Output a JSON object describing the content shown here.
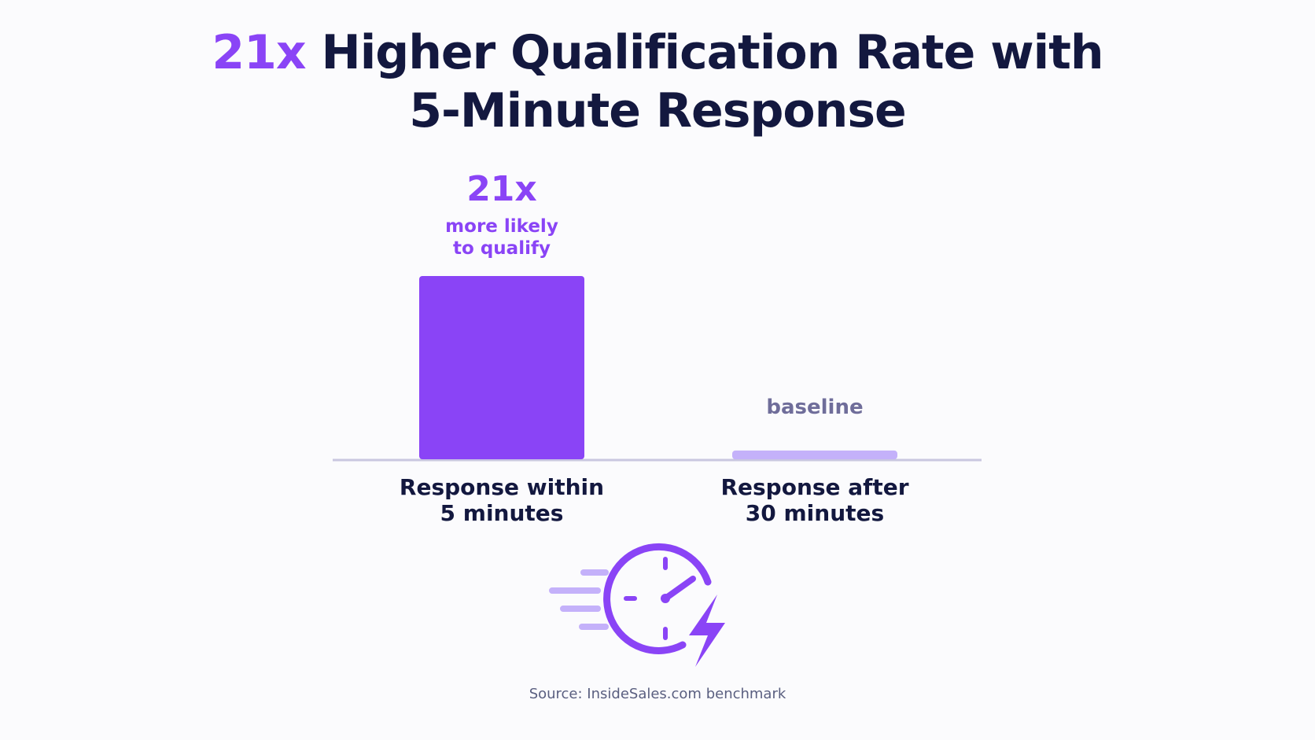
{
  "chart_data": {
    "type": "bar",
    "title": "21x Higher Qualification Rate with 5-Minute Response",
    "categories": [
      "Response within 5 minutes",
      "Response after 30 minutes"
    ],
    "values": [
      21,
      1
    ],
    "value_labels": [
      "21x",
      "baseline"
    ],
    "annotation": "more likely to qualify",
    "colors": [
      "#8a44f6",
      "#c4b1fa"
    ],
    "source": "Source: InsideSales.com benchmark"
  }
}
